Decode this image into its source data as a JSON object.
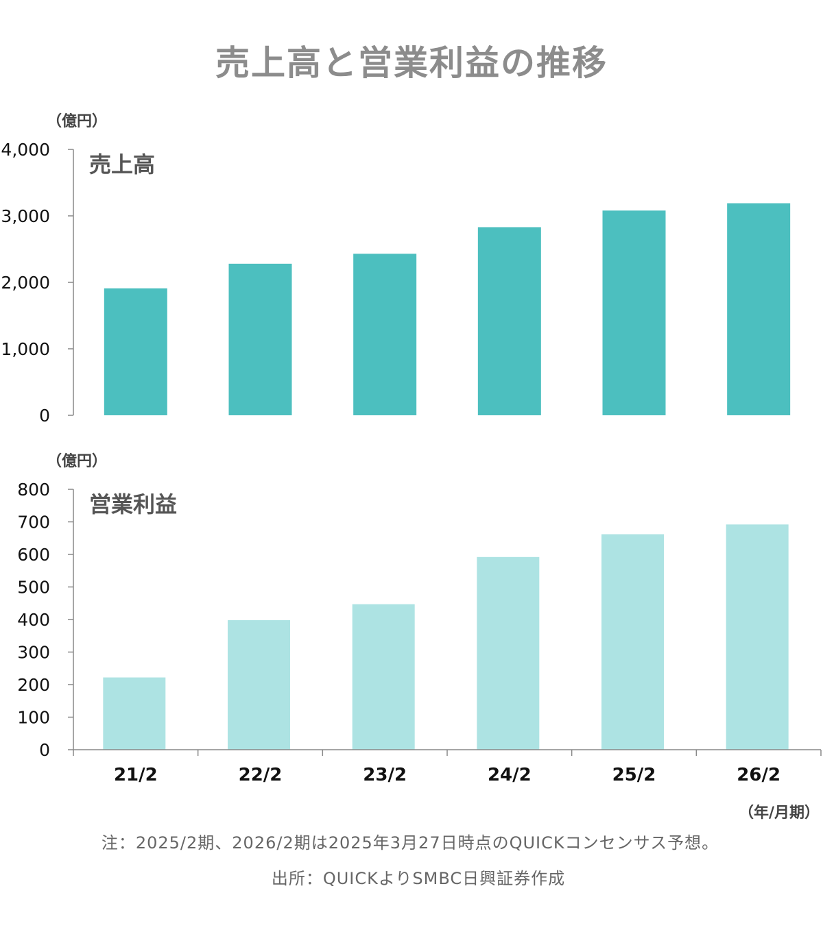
{
  "chart_data": {
    "title": "売上高と営業利益の推移",
    "x_unit": "（年/月期）",
    "categories": [
      "21/2",
      "22/2",
      "23/2",
      "24/2",
      "25/2",
      "26/2"
    ],
    "panels": [
      {
        "type": "bar",
        "panel_title": "売上高",
        "y_unit": "（億円）",
        "ylim": [
          0,
          4000
        ],
        "yticks": [
          0,
          1000,
          2000,
          3000,
          4000
        ],
        "ytick_labels": [
          "0",
          "1,000",
          "2,000",
          "3,000",
          "4,000"
        ],
        "values": [
          1910,
          2280,
          2430,
          2830,
          3080,
          3190
        ],
        "color": "#4cbfbf"
      },
      {
        "type": "bar",
        "panel_title": "営業利益",
        "y_unit": "（億円）",
        "ylim": [
          0,
          800
        ],
        "yticks": [
          0,
          100,
          200,
          300,
          400,
          500,
          600,
          700,
          800
        ],
        "ytick_labels": [
          "0",
          "100",
          "200",
          "300",
          "400",
          "500",
          "600",
          "700",
          "800"
        ],
        "values": [
          222,
          398,
          447,
          592,
          662,
          692
        ],
        "color": "#ade3e3"
      }
    ]
  },
  "notes": {
    "note": "注：2025/2期、2026/2期は2025年3月27日時点のQUICKコンセンサス予想。",
    "source": "出所：QUICKよりSMBC日興証券作成"
  }
}
